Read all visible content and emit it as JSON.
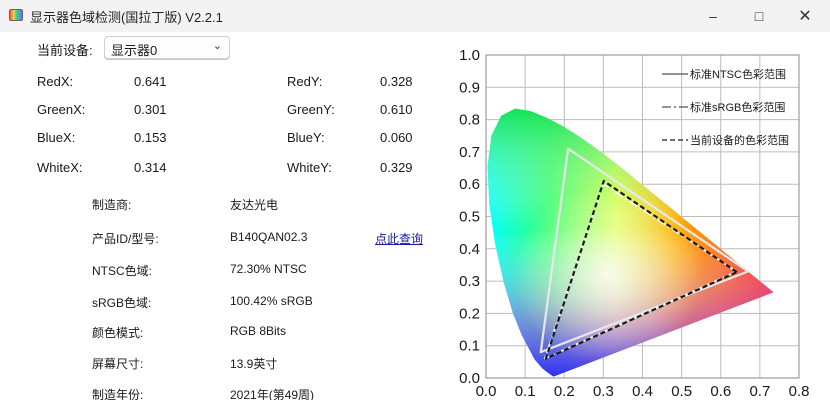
{
  "window": {
    "title": "显示器色域检测(国拉丁版) V2.2.1",
    "minimize_icon": "minimize-icon",
    "maximize_icon": "maximize-icon",
    "close_icon": "close-icon"
  },
  "device": {
    "label": "当前设备:",
    "selected": "显示器0"
  },
  "coords": {
    "redx_label": "RedX:",
    "redx_value": "0.641",
    "redy_label": "RedY:",
    "redy_value": "0.328",
    "greenx_label": "GreenX:",
    "greenx_value": "0.301",
    "greeny_label": "GreenY:",
    "greeny_value": "0.610",
    "bluex_label": "BlueX:",
    "bluex_value": "0.153",
    "bluey_label": "BlueY:",
    "bluey_value": "0.060",
    "whitex_label": "WhiteX:",
    "whitex_value": "0.314",
    "whitey_label": "WhiteY:",
    "whitey_value": "0.329"
  },
  "info": [
    {
      "label": "制造商:",
      "value": "友达光电"
    },
    {
      "label": "产品ID/型号:",
      "value": "B140QAN02.3"
    },
    {
      "label": "NTSC色域:",
      "value": "72.30% NTSC"
    },
    {
      "label": "sRGB色域:",
      "value": "100.42% sRGB"
    },
    {
      "label": "颜色模式:",
      "value": "RGB 8Bits"
    },
    {
      "label": "屏幕尺寸:",
      "value": "13.9英寸"
    },
    {
      "label": "制造年份:",
      "value": "2021年(第49周)"
    }
  ],
  "links": {
    "lookup": "点此查询"
  },
  "colors": {
    "titlebar": "#f3f3f3",
    "background": "#ffffff",
    "grid": "#bcbcbc",
    "ntsc_line": "#e8e8e8",
    "srgb_line": "#ffffff",
    "device_line": "#1a1a1a"
  },
  "chart_data": {
    "type": "scatter",
    "title": "",
    "xlabel": "",
    "ylabel": "",
    "xlim": [
      0,
      0.8
    ],
    "ylim": [
      0,
      1.0
    ],
    "x_ticks": [
      "0.0",
      "0.1",
      "0.2",
      "0.3",
      "0.4",
      "0.5",
      "0.6",
      "0.7",
      "0.8"
    ],
    "y_ticks": [
      "0.0",
      "0.1",
      "0.2",
      "0.3",
      "0.4",
      "0.5",
      "0.6",
      "0.7",
      "0.8",
      "0.9",
      "1.0"
    ],
    "grid": true,
    "legend_position": "top-right",
    "series": [
      {
        "name": "标准NTSC色彩范围",
        "style": "solid",
        "x": [
          0.67,
          0.21,
          0.14
        ],
        "y": [
          0.33,
          0.71,
          0.08
        ]
      },
      {
        "name": "标准sRGB色彩范围",
        "style": "dash-dot",
        "x": [
          0.64,
          0.3,
          0.15
        ],
        "y": [
          0.33,
          0.6,
          0.06
        ]
      },
      {
        "name": "当前设备的色彩范围",
        "style": "dashed",
        "x": [
          0.641,
          0.301,
          0.153
        ],
        "y": [
          0.328,
          0.61,
          0.06
        ]
      }
    ],
    "white_point": {
      "x": 0.314,
      "y": 0.329
    }
  }
}
